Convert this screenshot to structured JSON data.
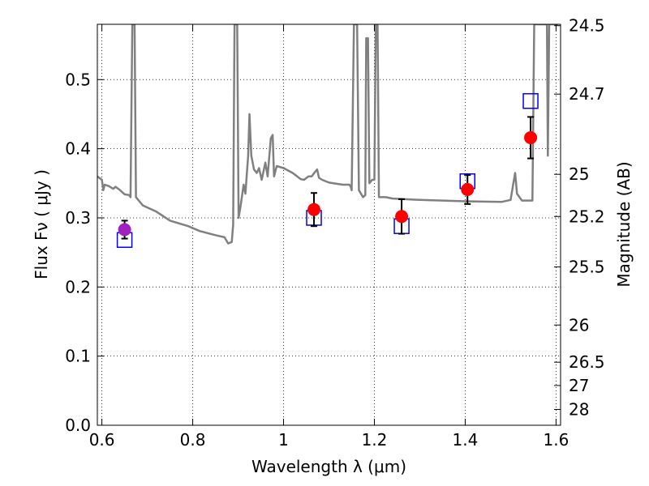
{
  "chart_data": {
    "type": "scatter",
    "xlabel": "Wavelength  λ (μm)",
    "ylabel": "Flux  Fν  ( μJy )",
    "ylabel_right": "Magnitude (AB)",
    "xlim": [
      0.59,
      1.61
    ],
    "ylim": [
      0.0,
      0.58
    ],
    "grid": true,
    "x_ticks": [
      0.6,
      0.8,
      1.0,
      1.2,
      1.4,
      1.6
    ],
    "x_tick_labels": [
      "0.6",
      "0.8",
      "1",
      "1.2",
      "1.4",
      "1.6"
    ],
    "y_ticks": [
      0.0,
      0.1,
      0.2,
      0.3,
      0.4,
      0.5
    ],
    "y_tick_labels": [
      "0.0",
      "0.1",
      "0.2",
      "0.3",
      "0.4",
      "0.5"
    ],
    "right_ticks": [
      {
        "label": "24.5",
        "flux": 0.578
      },
      {
        "label": "24.7",
        "flux": 0.479
      },
      {
        "label": "25",
        "flux": 0.363
      },
      {
        "label": "25.2",
        "flux": 0.302
      },
      {
        "label": "25.5",
        "flux": 0.229
      },
      {
        "label": "26",
        "flux": 0.145
      },
      {
        "label": "26.5",
        "flux": 0.0912
      },
      {
        "label": "27",
        "flux": 0.0575
      },
      {
        "label": "28",
        "flux": 0.0229
      }
    ],
    "series": [
      {
        "style": "line",
        "color": "#808080",
        "points": [
          [
            0.59,
            0.36
          ],
          [
            0.6,
            0.355
          ],
          [
            0.603,
            0.34
          ],
          [
            0.606,
            0.348
          ],
          [
            0.615,
            0.346
          ],
          [
            0.625,
            0.342
          ],
          [
            0.63,
            0.345
          ],
          [
            0.64,
            0.34
          ],
          [
            0.65,
            0.334
          ],
          [
            0.66,
            0.333
          ],
          [
            0.663,
            0.33
          ],
          [
            0.667,
            0.58
          ],
          [
            0.672,
            0.58
          ],
          [
            0.675,
            0.33
          ],
          [
            0.69,
            0.318
          ],
          [
            0.72,
            0.309
          ],
          [
            0.75,
            0.296
          ],
          [
            0.79,
            0.288
          ],
          [
            0.815,
            0.281
          ],
          [
            0.85,
            0.275
          ],
          [
            0.87,
            0.272
          ],
          [
            0.878,
            0.263
          ],
          [
            0.886,
            0.265
          ],
          [
            0.889,
            0.29
          ],
          [
            0.892,
            0.58
          ],
          [
            0.898,
            0.58
          ],
          [
            0.901,
            0.3
          ],
          [
            0.905,
            0.315
          ],
          [
            0.912,
            0.348
          ],
          [
            0.916,
            0.335
          ],
          [
            0.922,
            0.39
          ],
          [
            0.925,
            0.45
          ],
          [
            0.929,
            0.39
          ],
          [
            0.935,
            0.37
          ],
          [
            0.941,
            0.365
          ],
          [
            0.946,
            0.372
          ],
          [
            0.952,
            0.355
          ],
          [
            0.96,
            0.38
          ],
          [
            0.965,
            0.36
          ],
          [
            0.972,
            0.415
          ],
          [
            0.976,
            0.42
          ],
          [
            0.979,
            0.36
          ],
          [
            0.985,
            0.375
          ],
          [
            1.0,
            0.372
          ],
          [
            1.02,
            0.365
          ],
          [
            1.03,
            0.36
          ],
          [
            1.038,
            0.356
          ],
          [
            1.045,
            0.355
          ],
          [
            1.055,
            0.36
          ],
          [
            1.062,
            0.36
          ],
          [
            1.07,
            0.367
          ],
          [
            1.074,
            0.37
          ],
          [
            1.078,
            0.358
          ],
          [
            1.085,
            0.355
          ],
          [
            1.1,
            0.351
          ],
          [
            1.13,
            0.348
          ],
          [
            1.145,
            0.348
          ],
          [
            1.148,
            0.345
          ],
          [
            1.15,
            0.34
          ],
          [
            1.155,
            0.58
          ],
          [
            1.162,
            0.58
          ],
          [
            1.166,
            0.34
          ],
          [
            1.175,
            0.33
          ],
          [
            1.18,
            0.333
          ],
          [
            1.182,
            0.56
          ],
          [
            1.186,
            0.56
          ],
          [
            1.189,
            0.35
          ],
          [
            1.195,
            0.355
          ],
          [
            1.2,
            0.355
          ],
          [
            1.203,
            0.58
          ],
          [
            1.207,
            0.58
          ],
          [
            1.21,
            0.33
          ],
          [
            1.225,
            0.33
          ],
          [
            1.24,
            0.328
          ],
          [
            1.3,
            0.326
          ],
          [
            1.4,
            0.324
          ],
          [
            1.48,
            0.323
          ],
          [
            1.5,
            0.326
          ],
          [
            1.506,
            0.35
          ],
          [
            1.51,
            0.365
          ],
          [
            1.514,
            0.335
          ],
          [
            1.525,
            0.325
          ],
          [
            1.545,
            0.325
          ],
          [
            1.548,
            0.325
          ],
          [
            1.552,
            0.58
          ],
          [
            1.558,
            0.58
          ],
          [
            1.561,
            0.58
          ],
          [
            1.57,
            0.58
          ],
          [
            1.58,
            0.58
          ],
          [
            1.582,
            0.39
          ],
          [
            1.585,
            0.58
          ],
          [
            1.595,
            0.58
          ],
          [
            1.605,
            0.58
          ]
        ]
      },
      {
        "style": "open-square",
        "color": "#0000ff",
        "points": [
          {
            "x": 0.65,
            "y": 0.268
          },
          {
            "x": 1.067,
            "y": 0.3
          },
          {
            "x": 1.26,
            "y": 0.288
          },
          {
            "x": 1.405,
            "y": 0.353
          },
          {
            "x": 1.544,
            "y": 0.469
          }
        ]
      },
      {
        "style": "filled-circle-errorbar",
        "color": "#ff0000",
        "points": [
          {
            "x": 1.067,
            "y": 0.312,
            "err": 0.024
          },
          {
            "x": 1.26,
            "y": 0.302,
            "err": 0.025
          },
          {
            "x": 1.405,
            "y": 0.341,
            "err": 0.021
          },
          {
            "x": 1.544,
            "y": 0.416,
            "err": 0.03
          }
        ]
      },
      {
        "style": "filled-circle-errorbar",
        "color": "#a020c0",
        "points": [
          {
            "x": 0.65,
            "y": 0.283,
            "err": 0.013
          }
        ]
      }
    ]
  }
}
